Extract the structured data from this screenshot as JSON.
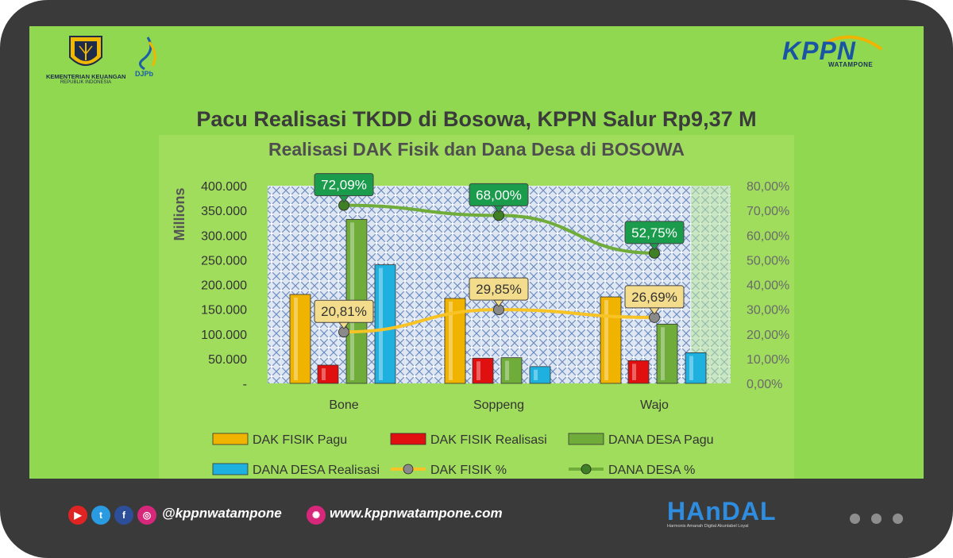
{
  "header": {
    "kemenkeu_line1": "KEMENTERIAN KEUANGAN",
    "kemenkeu_line2": "REPUBLIK INDONESIA",
    "djpb_label": "DJPb",
    "kppn_logo": "KPPN",
    "kppn_sub": "WATAMPONE",
    "headline": "Pacu Realisasi TKDD di Bosowa, KPPN Salur Rp9,37 M"
  },
  "chart_data": {
    "type": "bar",
    "title": "Realisasi DAK Fisik dan Dana Desa di BOSOWA",
    "ylabel": "Millions",
    "categories": [
      "Bone",
      "Soppeng",
      "Wajo"
    ],
    "ylim": [
      0,
      400000
    ],
    "y2lim": [
      0,
      80
    ],
    "yticks": [
      "-",
      "50.000",
      "100.000",
      "150.000",
      "200.000",
      "250.000",
      "300.000",
      "350.000",
      "400.000"
    ],
    "y2ticks": [
      "0,00%",
      "10,00%",
      "20,00%",
      "30,00%",
      "40,00%",
      "50,00%",
      "60,00%",
      "70,00%",
      "80,00%"
    ],
    "series": [
      {
        "name": "DAK FISIK Pagu",
        "kind": "bar",
        "color": "#f0b400",
        "values": [
          180000,
          172000,
          175000
        ]
      },
      {
        "name": "DAK FISIK Realisasi",
        "kind": "bar",
        "color": "#e01010",
        "values": [
          37000,
          51000,
          46000
        ]
      },
      {
        "name": "DANA DESA Pagu",
        "kind": "bar",
        "color": "#6fac3a",
        "values": [
          332000,
          52000,
          120000
        ]
      },
      {
        "name": "DANA DESA Realisasi",
        "kind": "bar",
        "color": "#1eb1e0",
        "values": [
          240000,
          34000,
          62000
        ]
      },
      {
        "name": "DAK FISIK %",
        "kind": "line",
        "color": "#f7c325",
        "values": [
          20.81,
          29.85,
          26.69
        ],
        "labels": [
          "20,81%",
          "29,85%",
          "26,69%"
        ]
      },
      {
        "name": "DANA DESA %",
        "kind": "line",
        "color": "#6fac3a",
        "values": [
          72.09,
          68.0,
          52.75
        ],
        "labels": [
          "72,09%",
          "68,00%",
          "52,75%"
        ]
      }
    ],
    "legend_position": "bottom"
  },
  "footer": {
    "social_icons": [
      "youtube-icon",
      "twitter-icon",
      "facebook-icon",
      "instagram-icon"
    ],
    "handle": "@kppnwatampone",
    "website": "www.kppnwatampone.com",
    "handal_word": "HAnDAL",
    "handal_values": "Harmonis   Amanah   Digital   Akuntabel   Loyal"
  }
}
